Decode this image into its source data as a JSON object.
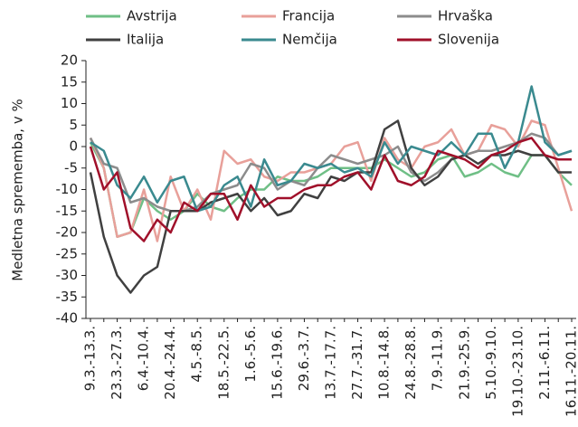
{
  "chart_data": {
    "type": "line",
    "y_label": "Medletna sprememba, v %",
    "categories": [
      "9.3.-13.3.",
      null,
      "23.3.-27.3.",
      null,
      "6.4.-10.4.",
      null,
      "20.4.-24.4.",
      null,
      "4.5.-8.5.",
      null,
      "18.5.-22.5.",
      null,
      "1.6.-5.6.",
      null,
      "15.6.-19.6.",
      null,
      "29.6.-3.7.",
      null,
      "13.7.-17.7.",
      null,
      "27.7.-31.7.",
      null,
      "10.8.-14.8.",
      null,
      "24.8.-28.8.",
      null,
      "7.9.-11.9.",
      null,
      "21.9.-25.9.",
      null,
      "5.10.-9.10.",
      null,
      "19.10.-23.10.",
      null,
      "2.11.-6.11.",
      null,
      "16.11.-20.11."
    ],
    "ylim": [
      -40,
      20
    ],
    "yticks": [
      -40,
      -35,
      -30,
      -25,
      -20,
      -15,
      -10,
      -5,
      0,
      5,
      10,
      15,
      20
    ],
    "series": [
      {
        "name": "Avstrija",
        "color": "#6fbf86",
        "values": [
          1,
          -5,
          -21,
          -20,
          -12,
          -15,
          -17,
          -15,
          -11,
          -14,
          -15,
          -12,
          -10,
          -10,
          -7,
          -8,
          -8,
          -7,
          -5,
          -5,
          -5,
          -5,
          -3,
          -5,
          -7,
          -6,
          -3,
          -2,
          -7,
          -6,
          -4,
          -6,
          -7,
          -2,
          -2,
          -6,
          -9
        ]
      },
      {
        "name": "Francija",
        "color": "#e8a09a",
        "values": [
          2,
          -5,
          -21,
          -20,
          -10,
          -22,
          -7,
          -15,
          -10,
          -17,
          -1,
          -4,
          -3,
          -7,
          -8,
          -6,
          -6,
          -5,
          -4,
          0,
          1,
          -8,
          2,
          -3,
          -5,
          0,
          1,
          4,
          -2,
          -1,
          5,
          4,
          0,
          6,
          5,
          -5,
          -15
        ]
      },
      {
        "name": "Hrvaška",
        "color": "#8c8c8c",
        "values": [
          2,
          -4,
          -5,
          -13,
          -12,
          -14,
          -15,
          -15,
          -14,
          -11,
          -10,
          -9,
          -4,
          -5,
          -10,
          -8,
          -9,
          -5,
          -2,
          -3,
          -4,
          -3,
          -2,
          0,
          -6,
          -8,
          -6,
          -3,
          -2,
          -1,
          -1,
          0,
          1,
          3,
          2,
          -2,
          -1
        ]
      },
      {
        "name": "Italija",
        "color": "#404040",
        "values": [
          -6,
          -21,
          -30,
          -34,
          -30,
          -28,
          -15,
          -15,
          -15,
          -13,
          -12,
          -11,
          -15,
          -12,
          -16,
          -15,
          -11,
          -12,
          -7,
          -8,
          -6,
          -6,
          4,
          6,
          -5,
          -9,
          -7,
          -3,
          -2,
          -4,
          -2,
          -2,
          -1,
          -2,
          -2,
          -6,
          -6
        ]
      },
      {
        "name": "Nemčija",
        "color": "#3a8a8f",
        "values": [
          1,
          -1,
          -9,
          -12,
          -7,
          -13,
          -8,
          -7,
          -15,
          -14,
          -9,
          -7,
          -14,
          -3,
          -9,
          -8,
          -4,
          -5,
          -4,
          -6,
          -5,
          -7,
          1,
          -4,
          0,
          -1,
          -2,
          1,
          -2,
          3,
          3,
          -5,
          1,
          14,
          1,
          -2,
          -1
        ]
      },
      {
        "name": "Slovenija",
        "color": "#a0102a",
        "values": [
          0,
          -10,
          -6,
          -19,
          -22,
          -17,
          -20,
          -13,
          -15,
          -11,
          -11,
          -17,
          -9,
          -14,
          -12,
          -12,
          -10,
          -9,
          -9,
          -7,
          -6,
          -10,
          -2,
          -8,
          -9,
          -7,
          -1,
          -2,
          -3,
          -5,
          -2,
          -1,
          1,
          2,
          -2,
          -3,
          -3
        ]
      }
    ]
  }
}
